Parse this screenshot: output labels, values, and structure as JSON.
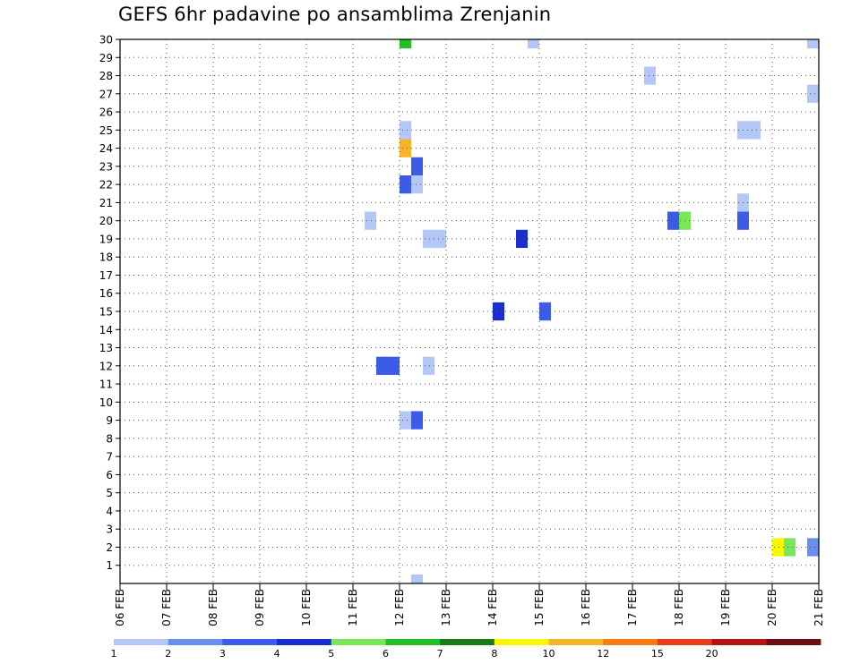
{
  "chart_data": {
    "type": "heatmap",
    "title": "GEFS 6hr padavine po ansamblima Zrenjanin",
    "xlabel": "",
    "ylabel": "",
    "x_tick_labels": [
      "06 FEB",
      "07 FEB",
      "08 FEB",
      "09 FEB",
      "10 FEB",
      "11 FEB",
      "12 FEB",
      "13 FEB",
      "14 FEB",
      "15 FEB",
      "16 FEB",
      "17 FEB",
      "18 FEB",
      "19 FEB",
      "20 FEB",
      "21 FEB"
    ],
    "y_tick_labels": [
      "1",
      "2",
      "3",
      "4",
      "5",
      "6",
      "7",
      "8",
      "9",
      "10",
      "11",
      "12",
      "13",
      "14",
      "15",
      "16",
      "17",
      "18",
      "19",
      "20",
      "21",
      "22",
      "23",
      "24",
      "25",
      "26",
      "27",
      "28",
      "29",
      "30"
    ],
    "xlim_days": [
      0,
      15
    ],
    "ylim": [
      0,
      30
    ],
    "grid": true,
    "colorbar": {
      "orientation": "horizontal",
      "placement": "bottom",
      "colors": [
        "#b4c8f8",
        "#6a8ef0",
        "#3a5ce8",
        "#1a2ed0",
        "#78e858",
        "#22c022",
        "#1a7a1a",
        "#f8f800",
        "#f8b428",
        "#f87c14",
        "#e83c14",
        "#b41414",
        "#6e0e0e"
      ],
      "tick_labels": [
        "1",
        "2",
        "3",
        "4",
        "5",
        "6",
        "7",
        "8",
        "10",
        "12",
        "15",
        "20"
      ]
    },
    "cells": [
      {
        "member": 30,
        "day": 6.125,
        "level": 6
      },
      {
        "member": 30,
        "day": 8.875,
        "level": 1
      },
      {
        "member": 30,
        "day": 14.875,
        "level": 1
      },
      {
        "member": 28,
        "day": 11.375,
        "level": 1
      },
      {
        "member": 27,
        "day": 14.875,
        "level": 1
      },
      {
        "member": 25,
        "day": 6.125,
        "level": 1
      },
      {
        "member": 25,
        "day": 13.375,
        "level": 1
      },
      {
        "member": 25,
        "day": 13.625,
        "level": 1
      },
      {
        "member": 24,
        "day": 6.125,
        "level": 9
      },
      {
        "member": 23,
        "day": 6.375,
        "level": 3
      },
      {
        "member": 22,
        "day": 6.125,
        "level": 3
      },
      {
        "member": 22,
        "day": 6.375,
        "level": 1
      },
      {
        "member": 21,
        "day": 13.375,
        "level": 1
      },
      {
        "member": 20,
        "day": 5.375,
        "level": 1
      },
      {
        "member": 20,
        "day": 11.875,
        "level": 3
      },
      {
        "member": 20,
        "day": 12.125,
        "level": 5
      },
      {
        "member": 20,
        "day": 13.375,
        "level": 3
      },
      {
        "member": 19,
        "day": 6.625,
        "level": 1
      },
      {
        "member": 19,
        "day": 6.875,
        "level": 1
      },
      {
        "member": 19,
        "day": 8.625,
        "level": 4
      },
      {
        "member": 15,
        "day": 8.125,
        "level": 4
      },
      {
        "member": 15,
        "day": 9.125,
        "level": 3
      },
      {
        "member": 12,
        "day": 5.625,
        "level": 3
      },
      {
        "member": 12,
        "day": 5.875,
        "level": 3
      },
      {
        "member": 12,
        "day": 6.625,
        "level": 1
      },
      {
        "member": 9,
        "day": 6.125,
        "level": 1
      },
      {
        "member": 9,
        "day": 6.375,
        "level": 3
      },
      {
        "member": 2,
        "day": 14.125,
        "level": 8
      },
      {
        "member": 2,
        "day": 14.375,
        "level": 5
      },
      {
        "member": 2,
        "day": 14.875,
        "level": 2
      },
      {
        "member": 0,
        "day": 6.375,
        "level": 1
      }
    ]
  }
}
